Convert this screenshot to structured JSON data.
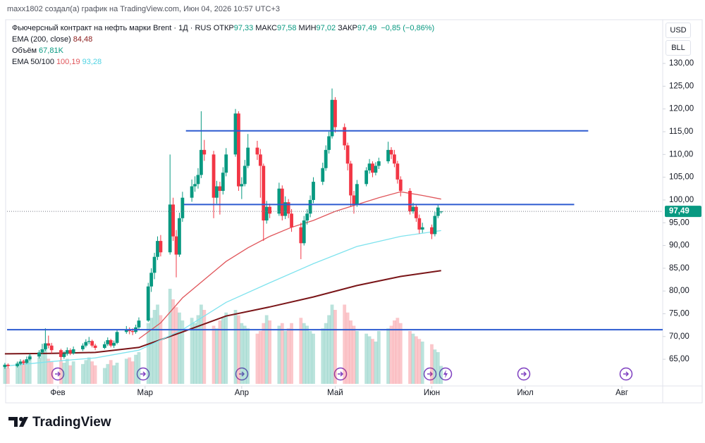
{
  "chart_data": {
    "type": "candlestick",
    "caption": "maxx1802 создал(а) график на TradingView.com, Июн 04, 2026 10:57 UTC+3",
    "title": "Фьючерсный контракт на нефть марки Brent · 1Д · RUS",
    "ohlc_legend": [
      {
        "label": "ОТКР",
        "value": "97,33"
      },
      {
        "label": "МАКС",
        "value": "97,58"
      },
      {
        "label": "МИН",
        "value": "97,02"
      },
      {
        "label": "ЗАКР",
        "value": "97,49"
      }
    ],
    "change": "−0,85 (−0,86%)",
    "legend_color": "#089981",
    "indicators": [
      {
        "name": "EMA (200, close)",
        "values": [
          "84,48"
        ],
        "colors": [
          "#8b1a1a"
        ]
      },
      {
        "name": "Объём",
        "values": [
          "67,81K"
        ],
        "colors": [
          "#089981"
        ]
      },
      {
        "name": "EMA 50/100",
        "values": [
          "100,19",
          "93,28"
        ],
        "colors": [
          "#e0555a",
          "#4fd3e3"
        ]
      }
    ],
    "currency": [
      "USD",
      "BLL"
    ],
    "up_color": "#089981",
    "down_color": "#f23645",
    "x": [
      15,
      16,
      19,
      20,
      21,
      22,
      23,
      26,
      27,
      28,
      29,
      30,
      33,
      34,
      35,
      36,
      37,
      40,
      41,
      42,
      43,
      44,
      47,
      48,
      49,
      50,
      51,
      54,
      55,
      56,
      57,
      58,
      61,
      62,
      63,
      64,
      65,
      68,
      69,
      70,
      71,
      72,
      75,
      76,
      77,
      78,
      79,
      82,
      83,
      84,
      85,
      86,
      89,
      90,
      91,
      92,
      93,
      96,
      97,
      98,
      99,
      100,
      103,
      104,
      105,
      106,
      107,
      110,
      111,
      112,
      113,
      114,
      117,
      118,
      119,
      120,
      121,
      124,
      125,
      126,
      127,
      128,
      131,
      132,
      133,
      134,
      135,
      138,
      139,
      140,
      141,
      142,
      145,
      146,
      147,
      148,
      149,
      152,
      153,
      154,
      155
    ],
    "candles": [
      [
        63.3,
        64.2,
        62.9,
        63.8
      ],
      [
        63.8,
        64.1,
        63.0,
        63.5
      ],
      [
        63.5,
        64.5,
        63.2,
        64.0
      ],
      [
        64.0,
        65.0,
        63.7,
        64.5
      ],
      [
        64.5,
        64.9,
        63.8,
        64.2
      ],
      [
        64.2,
        65.6,
        64.0,
        65.0
      ],
      [
        65.0,
        66.2,
        64.7,
        65.6
      ],
      [
        65.6,
        67.0,
        65.2,
        66.5
      ],
      [
        66.5,
        68.4,
        66.1,
        67.2
      ],
      [
        67.2,
        71.8,
        66.8,
        68.5
      ],
      [
        68.5,
        70.2,
        67.4,
        68.0
      ],
      [
        68.0,
        68.6,
        66.3,
        67.0
      ],
      [
        67.0,
        67.3,
        64.8,
        65.5
      ],
      [
        65.5,
        66.8,
        65.1,
        66.2
      ],
      [
        66.2,
        67.6,
        65.8,
        67.0
      ],
      [
        67.0,
        67.4,
        65.9,
        66.3
      ],
      [
        66.3,
        67.8,
        66.0,
        67.2
      ],
      [
        67.2,
        68.5,
        66.8,
        68.0
      ],
      [
        68.0,
        69.4,
        67.6,
        68.8
      ],
      [
        68.8,
        69.9,
        68.3,
        69.0
      ],
      [
        69.0,
        69.3,
        67.6,
        68.0
      ],
      [
        68.0,
        68.4,
        67.0,
        67.5
      ],
      [
        67.5,
        68.9,
        67.2,
        68.3
      ],
      [
        68.3,
        69.8,
        67.9,
        69.2
      ],
      [
        69.2,
        69.5,
        67.6,
        68.0
      ],
      [
        68.0,
        69.1,
        67.5,
        68.6
      ],
      [
        68.6,
        71.5,
        68.3,
        71.0
      ],
      [
        71.0,
        72.3,
        70.6,
        71.5
      ],
      [
        71.5,
        72.0,
        70.5,
        71.2
      ],
      [
        71.2,
        71.8,
        70.3,
        71.0
      ],
      [
        71.0,
        72.6,
        70.6,
        72.0
      ],
      [
        72.0,
        74.2,
        71.6,
        73.5
      ],
      [
        73.5,
        81.8,
        73.2,
        81.0
      ],
      [
        81.0,
        85.0,
        79.8,
        84.0
      ],
      [
        84.0,
        88.4,
        82.6,
        87.5
      ],
      [
        87.5,
        92.0,
        86.8,
        91.0
      ],
      [
        91.0,
        92.3,
        87.6,
        88.5
      ],
      [
        88.5,
        110.0,
        88.0,
        99.0
      ],
      [
        99.0,
        100.5,
        91.0,
        92.0
      ],
      [
        92.0,
        93.4,
        83.0,
        88.0
      ],
      [
        88.0,
        97.2,
        87.5,
        96.0
      ],
      [
        96.0,
        101.8,
        95.2,
        100.5
      ],
      [
        100.5,
        104.5,
        99.6,
        103.0
      ],
      [
        103.0,
        105.2,
        101.8,
        103.5
      ],
      [
        103.5,
        107.0,
        102.5,
        105.5
      ],
      [
        105.5,
        119.5,
        104.8,
        111.0
      ],
      [
        111.0,
        113.2,
        108.6,
        110.0
      ],
      [
        110.0,
        110.8,
        96.0,
        100.5
      ],
      [
        100.5,
        104.2,
        99.2,
        103.0
      ],
      [
        103.0,
        104.0,
        96.8,
        102.0
      ],
      [
        102.0,
        107.2,
        101.2,
        106.0
      ],
      [
        106.0,
        111.4,
        105.2,
        110.0
      ],
      [
        110.0,
        120.0,
        109.5,
        119.0
      ],
      [
        119.0,
        119.5,
        102.0,
        103.0
      ],
      [
        103.0,
        105.0,
        100.2,
        103.5
      ],
      [
        103.5,
        108.8,
        103.0,
        107.5
      ],
      [
        107.5,
        114.5,
        107.0,
        111.5
      ],
      [
        111.5,
        113.0,
        108.8,
        110.0
      ],
      [
        110.0,
        111.2,
        100.5,
        107.5
      ],
      [
        107.5,
        108.0,
        91.0,
        95.5
      ],
      [
        95.5,
        99.8,
        94.8,
        98.5
      ],
      [
        98.5,
        99.2,
        96.0,
        97.0
      ],
      [
        97.0,
        103.8,
        96.5,
        102.5
      ],
      [
        102.5,
        103.2,
        95.5,
        96.5
      ],
      [
        96.5,
        100.8,
        95.8,
        99.5
      ],
      [
        99.5,
        100.2,
        96.0,
        97.0
      ],
      [
        97.0,
        98.0,
        93.0,
        94.0
      ],
      [
        94.0,
        95.0,
        87.0,
        90.5
      ],
      [
        90.5,
        96.5,
        90.0,
        95.5
      ],
      [
        95.5,
        98.0,
        94.6,
        97.0
      ],
      [
        97.0,
        101.0,
        96.2,
        100.0
      ],
      [
        100.0,
        105.0,
        99.3,
        104.0
      ],
      [
        104.0,
        108.2,
        103.3,
        107.0
      ],
      [
        107.0,
        112.0,
        106.4,
        111.0
      ],
      [
        111.0,
        115.0,
        110.2,
        114.0
      ],
      [
        114.0,
        124.5,
        113.5,
        122.0
      ],
      [
        122.0,
        122.6,
        114.8,
        116.0
      ],
      [
        116.0,
        116.8,
        111.0,
        112.0
      ],
      [
        112.0,
        112.6,
        106.5,
        108.0
      ],
      [
        108.0,
        108.6,
        98.5,
        101.0
      ],
      [
        101.0,
        102.0,
        97.0,
        99.0
      ],
      [
        99.0,
        104.4,
        98.5,
        103.5
      ],
      [
        103.5,
        107.2,
        103.0,
        106.5
      ],
      [
        106.5,
        109.0,
        105.8,
        108.0
      ],
      [
        108.0,
        108.5,
        105.0,
        106.0
      ],
      [
        106.0,
        108.3,
        105.4,
        107.5
      ],
      [
        107.5,
        109.3,
        106.8,
        108.5
      ],
      [
        108.5,
        112.8,
        108.0,
        111.0
      ],
      [
        111.0,
        111.6,
        109.0,
        110.0
      ],
      [
        110.0,
        111.0,
        107.2,
        108.0
      ],
      [
        108.0,
        108.6,
        103.6,
        104.5
      ],
      [
        104.5,
        105.2,
        100.8,
        102.0
      ],
      [
        102.0,
        102.6,
        96.8,
        97.5
      ],
      [
        97.5,
        99.4,
        97.0,
        98.5
      ],
      [
        98.5,
        99.0,
        95.2,
        96.0
      ],
      [
        96.0,
        96.8,
        92.6,
        93.5
      ],
      [
        93.5,
        95.0,
        92.8,
        94.0
      ],
      [
        94.0,
        94.6,
        91.4,
        92.5
      ],
      [
        92.5,
        97.4,
        92.0,
        96.5
      ],
      [
        96.5,
        99.0,
        96.0,
        98.34
      ],
      [
        97.33,
        97.58,
        97.02,
        97.49
      ]
    ],
    "volume": [
      70,
      60,
      80,
      75,
      90,
      85,
      110,
      100,
      130,
      140,
      95,
      85,
      90,
      80,
      95,
      70,
      85,
      75,
      90,
      100,
      85,
      70,
      60,
      75,
      90,
      70,
      80,
      95,
      100,
      85,
      110,
      120,
      230,
      250,
      280,
      300,
      260,
      360,
      320,
      290,
      270,
      240,
      250,
      230,
      260,
      300,
      280,
      220,
      210,
      240,
      250,
      270,
      280,
      260,
      230,
      220,
      210,
      190,
      200,
      230,
      260,
      240,
      220,
      230,
      200,
      210,
      230,
      250,
      230,
      220,
      200,
      190,
      210,
      230,
      260,
      300,
      280,
      300,
      270,
      240,
      220,
      200,
      190,
      180,
      170,
      160,
      200,
      210,
      220,
      240,
      250,
      230,
      200,
      190,
      180,
      170,
      160,
      150,
      130,
      120,
      67.81
    ],
    "ema": [
      {
        "color": "#7a1518",
        "x": [
          15,
          30,
          44,
          58,
          72,
          86,
          100,
          114,
          128,
          142,
          155
        ],
        "values": [
          66.2,
          66.3,
          66.5,
          67.6,
          71.0,
          74.5,
          76.5,
          78.7,
          81.2,
          83.2,
          84.48
        ]
      },
      {
        "color": "#e0555a",
        "x": [
          58,
          65,
          72,
          79,
          86,
          93,
          100,
          107,
          114,
          121,
          128,
          135,
          142,
          149,
          155
        ],
        "values": [
          69.5,
          73.0,
          78.5,
          82.5,
          86.5,
          89.5,
          92.0,
          94.0,
          95.5,
          97.5,
          99.0,
          100.5,
          101.8,
          101.0,
          100.19
        ]
      },
      {
        "color": "#7fe3ee",
        "x": [
          15,
          30,
          44,
          58,
          72,
          86,
          100,
          114,
          128,
          142,
          155
        ],
        "values": [
          63.5,
          64.5,
          65.3,
          67.0,
          71.5,
          77.5,
          81.8,
          86.0,
          89.8,
          92.0,
          93.28
        ]
      }
    ],
    "levels": [
      {
        "value": 115.2,
        "x": [
          73.1,
          202.2
        ]
      },
      {
        "value": 99.0,
        "x": [
          72.4,
          197.7
        ]
      },
      {
        "value": 71.5,
        "x": [
          15.7,
          226.1
        ]
      }
    ],
    "level_color": "#2d5bd0",
    "last": {
      "value": 97.49,
      "label": "97,49"
    },
    "xlim": [
      15.7,
      226.1
    ],
    "ylim": [
      59.6,
      139.3
    ],
    "yticks": [
      {
        "value": 65,
        "label": "65,00"
      },
      {
        "value": 70,
        "label": "70,00"
      },
      {
        "value": 75,
        "label": "75,00"
      },
      {
        "value": 80,
        "label": "80,00"
      },
      {
        "value": 85,
        "label": "85,00"
      },
      {
        "value": 90,
        "label": "90,00"
      },
      {
        "value": 95,
        "label": "95,00"
      },
      {
        "value": 100,
        "label": "100,00"
      },
      {
        "value": 105,
        "label": "105,00"
      },
      {
        "value": 110,
        "label": "110,00"
      },
      {
        "value": 115,
        "label": "115,00"
      },
      {
        "value": 120,
        "label": "120,00"
      },
      {
        "value": 125,
        "label": "125,00"
      },
      {
        "value": 130,
        "label": "130,00"
      }
    ],
    "xticks": [
      {
        "value": 32,
        "label": "Фев"
      },
      {
        "value": 60,
        "label": "Мар"
      },
      {
        "value": 91,
        "label": "Апр"
      },
      {
        "value": 121,
        "label": "Май"
      },
      {
        "value": 152,
        "label": "Июн"
      },
      {
        "value": 182,
        "label": "Июл"
      },
      {
        "value": 213,
        "label": "Авг"
      }
    ],
    "brand": "TradingView"
  }
}
